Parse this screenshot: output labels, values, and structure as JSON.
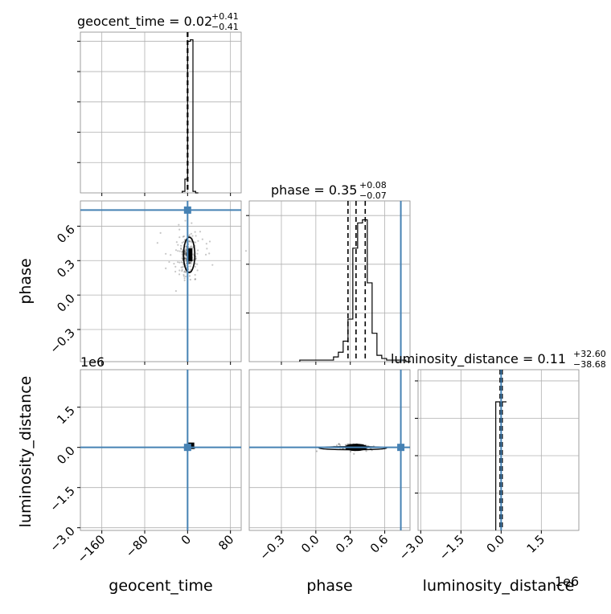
{
  "chart_data": {
    "type": "corner",
    "truth_color": "#4682b4",
    "titles": {
      "geocent_time": {
        "name": "geocent_time",
        "median": "0.02",
        "plus": "+0.41",
        "minus": "−0.41"
      },
      "phase": {
        "name": "phase",
        "median": "0.35",
        "plus": "+0.08",
        "minus": "−0.07"
      },
      "luminosity_distance": {
        "name": "luminosity_distance",
        "median": "0.11",
        "plus": "+32.60",
        "minus": "−38.68"
      }
    },
    "axis_labels": {
      "x": [
        "geocent_time",
        "phase",
        "luminosity_distance"
      ],
      "y": [
        "phase",
        "luminosity_distance"
      ]
    },
    "offset_texts": {
      "y_row3": "1e6",
      "x_col3": "1e6"
    },
    "ticks": {
      "geocent_time": {
        "values": [
          -160,
          -80,
          0,
          80
        ],
        "labels": [
          "−160",
          "−80",
          "0",
          "80"
        ],
        "range": [
          -200,
          100
        ]
      },
      "phase": {
        "values": [
          -0.3,
          0.0,
          0.3,
          0.6
        ],
        "labels": [
          "−0.3",
          "0.0",
          "0.3",
          "0.6"
        ],
        "range": [
          -0.58,
          0.82
        ]
      },
      "luminosity_distance": {
        "values": [
          -3.0,
          -1.5,
          0.0,
          1.5
        ],
        "labels": [
          "−3.0",
          "−1.5",
          "0.0",
          "1.5"
        ],
        "range": [
          -3.1,
          2.9
        ]
      }
    },
    "truths": {
      "geocent_time": 0.0,
      "phase": 0.74,
      "luminosity_distance": 0.0
    },
    "hist_geocent_time": {
      "edges": [
        -10,
        -5,
        0,
        5,
        10,
        15,
        20
      ],
      "counts": [
        0.01,
        0.09,
        0.99,
        1.0,
        0.01,
        0.0
      ],
      "quantiles": [
        -0.39,
        0.02,
        0.43
      ],
      "ylim": [
        0,
        1.05
      ]
    },
    "hist_phase": {
      "edges": [
        -0.14,
        -0.098,
        -0.056,
        -0.014,
        0.028,
        0.07,
        0.112,
        0.154,
        0.196,
        0.238,
        0.28,
        0.322,
        0.364,
        0.406,
        0.448,
        0.49,
        0.532,
        0.574,
        0.616,
        0.658,
        0.7,
        0.742,
        0.784,
        0.826
      ],
      "counts": [
        0.01,
        0.01,
        0.01,
        0.01,
        0.01,
        0.01,
        0.01,
        0.03,
        0.06,
        0.13,
        0.27,
        0.72,
        0.88,
        0.9,
        0.5,
        0.18,
        0.04,
        0.02,
        0.01,
        0.01,
        0.01,
        0.01,
        0.0
      ],
      "quantiles": [
        0.28,
        0.35,
        0.43
      ],
      "ylim": [
        0,
        1.02
      ]
    },
    "hist_luminosity_distance": {
      "edges": [
        -0.2,
        0.0,
        0.2
      ],
      "counts": [
        1.0,
        1.0
      ],
      "quantiles": [
        -0.04,
        0.0,
        0.04
      ],
      "ylim": [
        0,
        1.25
      ]
    }
  }
}
